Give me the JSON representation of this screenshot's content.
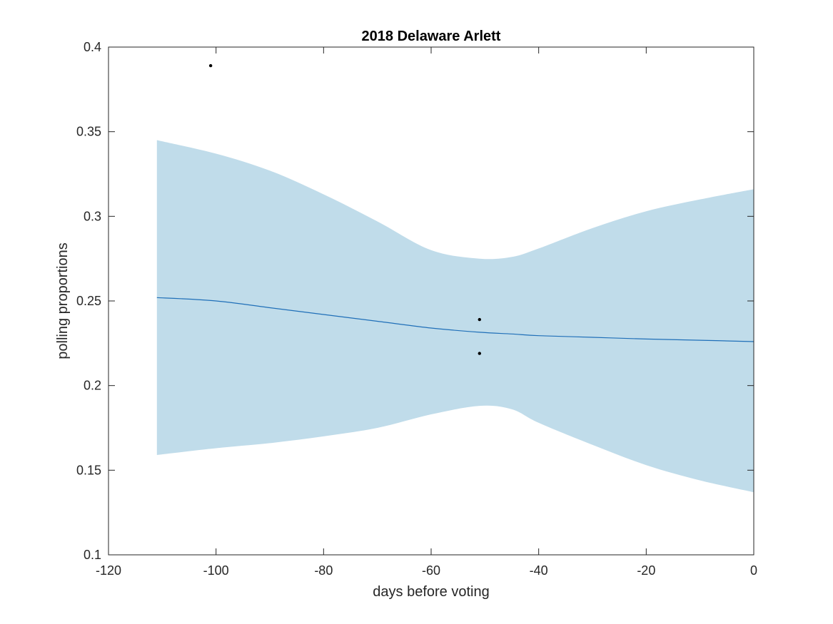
{
  "chart_data": {
    "type": "line",
    "title": "2018 Delaware Arlett",
    "xlabel": "days before voting",
    "ylabel": "polling proportions",
    "xlim": [
      -120,
      0
    ],
    "ylim": [
      0.1,
      0.4
    ],
    "xticks": [
      -120,
      -100,
      -80,
      -60,
      -40,
      -20,
      0
    ],
    "yticks": [
      0.1,
      0.15,
      0.2,
      0.25,
      0.3,
      0.35,
      0.4
    ],
    "xtick_labels": [
      "-120",
      "-100",
      "-80",
      "-60",
      "-40",
      "-20",
      "0"
    ],
    "ytick_labels": [
      "0.1",
      "0.15",
      "0.2",
      "0.25",
      "0.3",
      "0.35",
      "0.4"
    ],
    "grid": false,
    "legend": "none",
    "colors": {
      "band": "#c0dcea",
      "line": "#1f6fb8",
      "points": "#000000",
      "axes": "#262626"
    },
    "series": [
      {
        "type": "line",
        "x": [
          -111,
          -100,
          -90,
          -80,
          -70,
          -60,
          -51,
          -45,
          -40,
          -30,
          -20,
          -10,
          0
        ],
        "y": [
          0.252,
          0.25,
          0.246,
          0.242,
          0.238,
          0.234,
          0.2315,
          0.2305,
          0.2295,
          0.2285,
          0.2275,
          0.2268,
          0.226
        ]
      },
      {
        "type": "area_band",
        "x": [
          -111,
          -100,
          -90,
          -80,
          -70,
          -60,
          -51,
          -45,
          -40,
          -30,
          -20,
          -10,
          0
        ],
        "upper": [
          0.345,
          0.337,
          0.327,
          0.313,
          0.297,
          0.28,
          0.275,
          0.276,
          0.281,
          0.293,
          0.303,
          0.31,
          0.316
        ],
        "lower": [
          0.159,
          0.163,
          0.166,
          0.17,
          0.175,
          0.183,
          0.188,
          0.186,
          0.178,
          0.165,
          0.153,
          0.144,
          0.137
        ]
      },
      {
        "type": "scatter",
        "x": [
          -101,
          -51,
          -51
        ],
        "y": [
          0.389,
          0.239,
          0.219
        ]
      }
    ]
  }
}
